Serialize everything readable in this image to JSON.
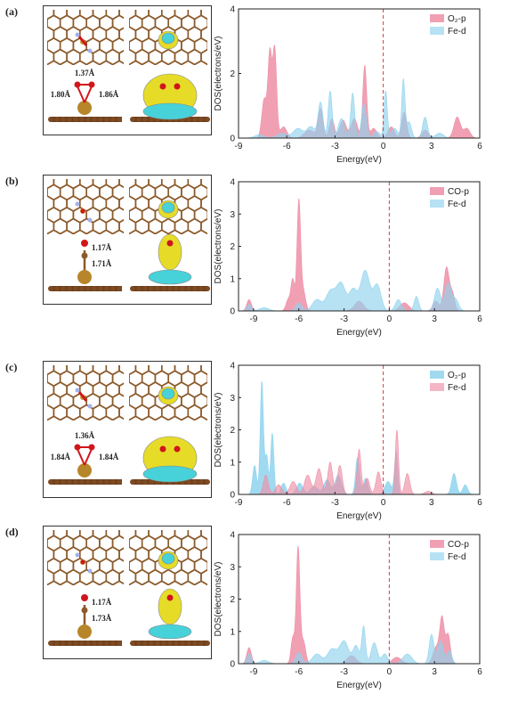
{
  "colors": {
    "series_a": "#ee8fa6",
    "series_b": "#8fd3ee",
    "fermi": "#e03a3a",
    "carbon": "#8b5a2b",
    "iso_yellow": "#e6dc28",
    "iso_cyan": "#46d2d8"
  },
  "panels": [
    {
      "label": "(a)",
      "bonds": [
        "1.37Å",
        "1.80Å",
        "1.86Å"
      ],
      "chart_data": {
        "type": "area",
        "xlabel": "Energy(eV)",
        "ylabel": "DOS(electrons/eV)",
        "xlim": [
          -9,
          6
        ],
        "ylim": [
          0,
          4
        ],
        "xticks": [
          "-9",
          "-6",
          "-3",
          "0",
          "3",
          "6"
        ],
        "yticks": [
          "0",
          "2",
          "4"
        ],
        "fermi_level": 0,
        "legend": "top-right",
        "series": [
          {
            "name": "O₂-p",
            "color": "#ee8fa6",
            "peaks": [
              [
                -7.4,
                1.2,
                0.15
              ],
              [
                -7.05,
                2.6,
                0.12
              ],
              [
                -6.75,
                2.75,
                0.12
              ],
              [
                -6.2,
                0.35,
                0.2
              ],
              [
                -4.6,
                0.25,
                0.3
              ],
              [
                -3.9,
                0.9,
                0.15
              ],
              [
                -3.2,
                0.6,
                0.15
              ],
              [
                -2.5,
                0.55,
                0.2
              ],
              [
                -1.8,
                0.6,
                0.2
              ],
              [
                -1.15,
                2.25,
                0.12
              ],
              [
                -0.6,
                0.3,
                0.2
              ],
              [
                0.5,
                0.35,
                0.2
              ],
              [
                1.3,
                0.8,
                0.15
              ],
              [
                2.6,
                0.25,
                0.2
              ],
              [
                4.6,
                0.65,
                0.2
              ],
              [
                5.2,
                0.3,
                0.2
              ]
            ]
          },
          {
            "name": "Fe-d",
            "color": "#8fd3ee",
            "peaks": [
              [
                -7.7,
                0.1,
                0.3
              ],
              [
                -6.3,
                0.15,
                0.3
              ],
              [
                -5.3,
                0.3,
                0.3
              ],
              [
                -4.5,
                0.35,
                0.25
              ],
              [
                -3.9,
                1.1,
                0.15
              ],
              [
                -3.3,
                1.45,
                0.12
              ],
              [
                -2.6,
                0.6,
                0.2
              ],
              [
                -1.9,
                1.4,
                0.12
              ],
              [
                -1.2,
                1.05,
                0.15
              ],
              [
                -0.4,
                0.2,
                0.2
              ],
              [
                0.15,
                1.45,
                0.1
              ],
              [
                0.7,
                0.3,
                0.2
              ],
              [
                1.25,
                1.8,
                0.1
              ],
              [
                1.6,
                0.5,
                0.15
              ],
              [
                2.6,
                0.65,
                0.15
              ],
              [
                3.5,
                0.15,
                0.25
              ]
            ]
          }
        ]
      }
    },
    {
      "label": "(b)",
      "bonds": [
        "1.17Å",
        "1.71Å"
      ],
      "chart_data": {
        "type": "area",
        "xlabel": "Energy(eV)",
        "ylabel": "DOS(electrons/eV)",
        "xlim": [
          -10,
          6
        ],
        "ylim": [
          0,
          4
        ],
        "xticks": [
          "-9",
          "-6",
          "-3",
          "0",
          "3",
          "6"
        ],
        "yticks": [
          "0",
          "1",
          "2",
          "3",
          "4"
        ],
        "fermi_level": 0,
        "legend": "top-right",
        "series": [
          {
            "name": "CO-p",
            "color": "#ee8fa6",
            "peaks": [
              [
                -9.3,
                0.35,
                0.15
              ],
              [
                -6.7,
                0.35,
                0.15
              ],
              [
                -6.4,
                0.95,
                0.12
              ],
              [
                -6.0,
                3.4,
                0.12
              ],
              [
                -5.7,
                0.6,
                0.15
              ],
              [
                -2.0,
                0.3,
                0.3
              ],
              [
                1.0,
                0.25,
                0.3
              ],
              [
                3.1,
                0.3,
                0.2
              ],
              [
                3.8,
                1.35,
                0.18
              ],
              [
                4.2,
                0.5,
                0.15
              ]
            ]
          },
          {
            "name": "Fe-d",
            "color": "#8fd3ee",
            "peaks": [
              [
                -9.3,
                0.2,
                0.15
              ],
              [
                -8.3,
                0.1,
                0.3
              ],
              [
                -6.0,
                0.25,
                0.2
              ],
              [
                -4.8,
                0.35,
                0.3
              ],
              [
                -3.9,
                0.6,
                0.3
              ],
              [
                -3.2,
                0.85,
                0.3
              ],
              [
                -2.4,
                0.65,
                0.25
              ],
              [
                -1.6,
                1.25,
                0.3
              ],
              [
                -0.8,
                0.8,
                0.25
              ],
              [
                0.6,
                0.35,
                0.2
              ],
              [
                1.8,
                0.45,
                0.15
              ],
              [
                3.2,
                0.7,
                0.2
              ],
              [
                3.9,
                0.85,
                0.2
              ],
              [
                4.4,
                0.35,
                0.2
              ]
            ]
          }
        ]
      }
    },
    {
      "label": "(c)",
      "bonds": [
        "1.36Å",
        "1.84Å",
        "1.84Å"
      ],
      "chart_data": {
        "type": "area",
        "xlabel": "Energy(eV)",
        "ylabel": "DOS(electrons/eV)",
        "xlim": [
          -9,
          6
        ],
        "ylim": [
          0,
          4
        ],
        "xticks": [
          "-9",
          "-6",
          "-3",
          "0",
          "3",
          "6"
        ],
        "yticks": [
          "0",
          "1",
          "2",
          "3",
          "4"
        ],
        "fermi_level": 0,
        "legend": "top-right",
        "series": [
          {
            "name": "O₂-p",
            "color": "#8fd3ee",
            "peaks": [
              [
                -8.0,
                0.9,
                0.12
              ],
              [
                -7.55,
                3.5,
                0.1
              ],
              [
                -7.25,
                1.2,
                0.1
              ],
              [
                -6.9,
                1.9,
                0.1
              ],
              [
                -6.2,
                0.35,
                0.15
              ],
              [
                -5.2,
                0.35,
                0.2
              ],
              [
                -4.3,
                0.25,
                0.25
              ],
              [
                -3.5,
                0.45,
                0.2
              ],
              [
                -2.8,
                0.6,
                0.2
              ],
              [
                -1.6,
                1.15,
                0.12
              ],
              [
                -1.1,
                0.5,
                0.15
              ],
              [
                0.3,
                0.4,
                0.2
              ],
              [
                0.8,
                1.3,
                0.1
              ],
              [
                4.4,
                0.65,
                0.15
              ],
              [
                5.1,
                0.3,
                0.15
              ]
            ]
          },
          {
            "name": "Fe-d",
            "color": "#ee8fa6",
            "peaks": [
              [
                -7.3,
                0.6,
                0.15
              ],
              [
                -6.5,
                0.3,
                0.2
              ],
              [
                -5.6,
                0.4,
                0.2
              ],
              [
                -4.7,
                0.6,
                0.2
              ],
              [
                -4.0,
                0.8,
                0.18
              ],
              [
                -3.3,
                1.0,
                0.15
              ],
              [
                -2.7,
                0.9,
                0.15
              ],
              [
                -1.5,
                1.4,
                0.12
              ],
              [
                -1.0,
                0.5,
                0.15
              ],
              [
                -0.3,
                0.7,
                0.15
              ],
              [
                0.85,
                2.0,
                0.1
              ],
              [
                1.5,
                0.65,
                0.15
              ],
              [
                2.8,
                0.1,
                0.2
              ]
            ]
          }
        ]
      }
    },
    {
      "label": "(d)",
      "bonds": [
        "1.17Å",
        "1.73Å"
      ],
      "chart_data": {
        "type": "area",
        "xlabel": "Energy(eV)",
        "ylabel": "DOS(electrons/eV)",
        "xlim": [
          -10,
          6
        ],
        "ylim": [
          0,
          4
        ],
        "xticks": [
          "-9",
          "-6",
          "-3",
          "0",
          "3",
          "6"
        ],
        "yticks": [
          "0",
          "1",
          "2",
          "3",
          "4"
        ],
        "fermi_level": 0,
        "legend": "top-right",
        "series": [
          {
            "name": "CO-p",
            "color": "#ee8fa6",
            "peaks": [
              [
                -9.3,
                0.5,
                0.15
              ],
              [
                -6.4,
                0.8,
                0.12
              ],
              [
                -6.05,
                3.6,
                0.12
              ],
              [
                -5.7,
                0.7,
                0.15
              ],
              [
                -2.5,
                0.25,
                0.3
              ],
              [
                0.5,
                0.2,
                0.3
              ],
              [
                3.1,
                0.5,
                0.2
              ],
              [
                3.5,
                1.4,
                0.15
              ],
              [
                3.9,
                0.9,
                0.15
              ]
            ]
          },
          {
            "name": "Fe-d",
            "color": "#8fd3ee",
            "peaks": [
              [
                -9.3,
                0.3,
                0.15
              ],
              [
                -8.3,
                0.1,
                0.3
              ],
              [
                -6.0,
                0.35,
                0.2
              ],
              [
                -4.8,
                0.3,
                0.3
              ],
              [
                -3.8,
                0.45,
                0.3
              ],
              [
                -3.0,
                0.7,
                0.3
              ],
              [
                -2.2,
                0.55,
                0.2
              ],
              [
                -1.7,
                1.15,
                0.12
              ],
              [
                -1.0,
                0.65,
                0.2
              ],
              [
                -0.3,
                0.3,
                0.2
              ],
              [
                1.2,
                0.3,
                0.3
              ],
              [
                2.8,
                0.9,
                0.15
              ],
              [
                3.4,
                0.7,
                0.2
              ],
              [
                4.0,
                0.4,
                0.15
              ]
            ]
          }
        ]
      }
    }
  ]
}
